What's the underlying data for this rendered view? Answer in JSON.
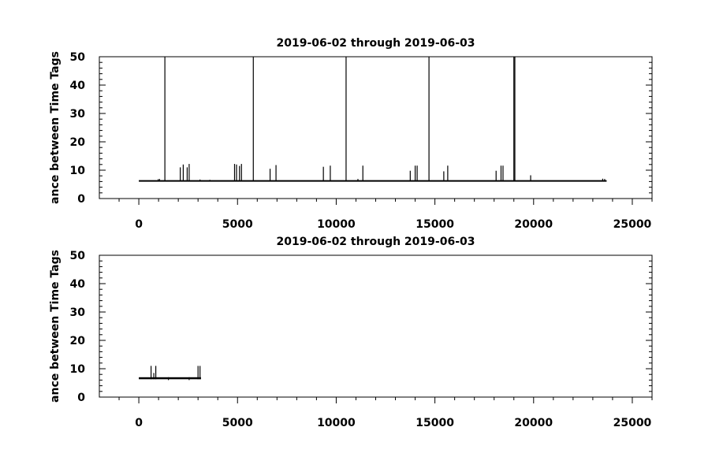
{
  "chart_data": [
    {
      "type": "line",
      "title": "2019-06-02 through 2019-06-03",
      "ylabel": "ance between Time Tags",
      "xlim": [
        -2000,
        26000
      ],
      "ylim": [
        0,
        50
      ],
      "xticks": [
        0,
        5000,
        10000,
        15000,
        20000,
        25000
      ],
      "xtick_labels": [
        "0",
        "5000",
        "10000",
        "15000",
        "20000",
        "25000"
      ],
      "yticks": [
        0,
        10,
        20,
        30,
        40,
        50
      ],
      "ytick_labels": [
        "0",
        "10",
        "20",
        "30",
        "40",
        "50"
      ],
      "grid": false,
      "series": [
        {
          "baseline": 6.2,
          "x_range": [
            0,
            23700
          ],
          "spikes": [
            {
              "x": 980,
              "y": 6.8
            },
            {
              "x": 1050,
              "y": 6.9
            },
            {
              "x": 1320,
              "y": 50
            },
            {
              "x": 2100,
              "y": 11
            },
            {
              "x": 2250,
              "y": 12
            },
            {
              "x": 2450,
              "y": 11
            },
            {
              "x": 2550,
              "y": 12.2
            },
            {
              "x": 3100,
              "y": 6.7
            },
            {
              "x": 3600,
              "y": 6.6
            },
            {
              "x": 4850,
              "y": 12.2
            },
            {
              "x": 4950,
              "y": 12
            },
            {
              "x": 5100,
              "y": 11.5
            },
            {
              "x": 5200,
              "y": 12.2
            },
            {
              "x": 5800,
              "y": 50
            },
            {
              "x": 6650,
              "y": 10.5
            },
            {
              "x": 6950,
              "y": 11.8
            },
            {
              "x": 9350,
              "y": 11.2
            },
            {
              "x": 9700,
              "y": 11.6
            },
            {
              "x": 10500,
              "y": 50
            },
            {
              "x": 11100,
              "y": 6.9
            },
            {
              "x": 11350,
              "y": 11.6
            },
            {
              "x": 13750,
              "y": 9.8
            },
            {
              "x": 14000,
              "y": 11.6
            },
            {
              "x": 14100,
              "y": 11.6
            },
            {
              "x": 14700,
              "y": 50
            },
            {
              "x": 15450,
              "y": 9.6
            },
            {
              "x": 15650,
              "y": 11.6
            },
            {
              "x": 18100,
              "y": 9.8
            },
            {
              "x": 18350,
              "y": 11.6
            },
            {
              "x": 18450,
              "y": 11.6
            },
            {
              "x": 19000,
              "y": 50
            },
            {
              "x": 19050,
              "y": 50
            },
            {
              "x": 19850,
              "y": 8.2
            },
            {
              "x": 23500,
              "y": 7.0
            },
            {
              "x": 23600,
              "y": 6.9
            }
          ]
        }
      ]
    },
    {
      "type": "line",
      "title": "2019-06-02 through 2019-06-03",
      "ylabel": "ance between Time Tags",
      "xlim": [
        -2000,
        26000
      ],
      "ylim": [
        0,
        50
      ],
      "xticks": [
        0,
        5000,
        10000,
        15000,
        20000,
        25000
      ],
      "xtick_labels": [
        "0",
        "5000",
        "10000",
        "15000",
        "20000",
        "25000"
      ],
      "yticks": [
        0,
        10,
        20,
        30,
        40,
        50
      ],
      "ytick_labels": [
        "0",
        "10",
        "20",
        "30",
        "40",
        "50"
      ],
      "grid": false,
      "series": [
        {
          "band": [
            6.3,
            7.0
          ],
          "x_range": [
            0,
            3150
          ],
          "spikes": [
            {
              "x": 620,
              "y": 11
            },
            {
              "x": 760,
              "y": 8.5
            },
            {
              "x": 860,
              "y": 11
            },
            {
              "x": 1500,
              "y": 6.0
            },
            {
              "x": 2550,
              "y": 6.0
            },
            {
              "x": 3000,
              "y": 11
            },
            {
              "x": 3100,
              "y": 11
            }
          ]
        }
      ]
    }
  ]
}
